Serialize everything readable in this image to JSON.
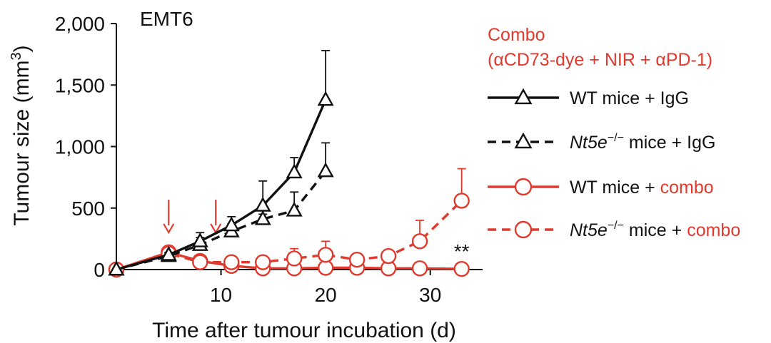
{
  "colors": {
    "black": "#111111",
    "red": "#e03a2e"
  },
  "chart_data": {
    "type": "line",
    "panel_label": "EMT6",
    "xlabel": "Time after tumour incubation (d)",
    "ylabel_main": "Tumour size (mm",
    "ylabel_sup": "3",
    "ylabel_close": ")",
    "xlim": [
      0,
      35
    ],
    "ylim": [
      0,
      2000
    ],
    "x_ticks": [
      10,
      20,
      30
    ],
    "x_tick_labels": [
      "10",
      "20",
      "30"
    ],
    "y_ticks": [
      0,
      500,
      1000,
      1500,
      2000
    ],
    "y_tick_labels": [
      "0",
      "500",
      "1,000",
      "1,500",
      "2,000"
    ],
    "treatment_days": [
      5,
      9.5
    ],
    "significance": {
      "text": "**",
      "x": 33
    },
    "legend_title_line1": "Combo",
    "legend_title_line2": "(αCD73-dye + NIR + αPD-1)",
    "series": [
      {
        "legend": {
          "prefix": "WT mice + ",
          "italic": "",
          "sup": "",
          "suffix_black": "IgG",
          "suffix_red": ""
        },
        "color": "black",
        "dash": "solid",
        "marker": "triangle",
        "x": [
          0,
          5,
          8,
          11,
          14,
          17,
          20
        ],
        "y": [
          0,
          120,
          230,
          360,
          520,
          790,
          1380
        ],
        "err": [
          0,
          20,
          70,
          70,
          200,
          120,
          400
        ]
      },
      {
        "legend": {
          "prefix": "",
          "italic": "Nt5e",
          "sup": "−/−",
          "suffix_black": " mice + IgG",
          "suffix_red": ""
        },
        "color": "black",
        "dash": "dashed",
        "marker": "triangle",
        "x": [
          0,
          5,
          8,
          11,
          14,
          17,
          20
        ],
        "y": [
          0,
          110,
          200,
          310,
          410,
          480,
          800
        ],
        "err": [
          0,
          20,
          60,
          60,
          40,
          150,
          230
        ]
      },
      {
        "legend": {
          "prefix": "WT mice + ",
          "italic": "",
          "sup": "",
          "suffix_black": "",
          "suffix_red": "combo"
        },
        "color": "red",
        "dash": "solid",
        "marker": "circle",
        "x": [
          0,
          5,
          8,
          11,
          14,
          17,
          20,
          23,
          26,
          29,
          33
        ],
        "y": [
          0,
          140,
          70,
          30,
          10,
          10,
          15,
          15,
          10,
          10,
          5
        ],
        "err": [
          0,
          30,
          20,
          15,
          10,
          10,
          10,
          10,
          10,
          10,
          5
        ]
      },
      {
        "legend": {
          "prefix": "",
          "italic": "Nt5e",
          "sup": "−/−",
          "suffix_black": " mice + ",
          "suffix_red": "combo"
        },
        "color": "red",
        "dash": "dashed",
        "marker": "circle",
        "x": [
          0,
          5,
          8,
          11,
          14,
          17,
          20,
          23,
          26,
          29,
          33
        ],
        "y": [
          0,
          130,
          60,
          60,
          60,
          90,
          120,
          80,
          110,
          230,
          560
        ],
        "err": [
          0,
          30,
          20,
          20,
          30,
          80,
          110,
          50,
          30,
          170,
          260
        ]
      }
    ]
  }
}
